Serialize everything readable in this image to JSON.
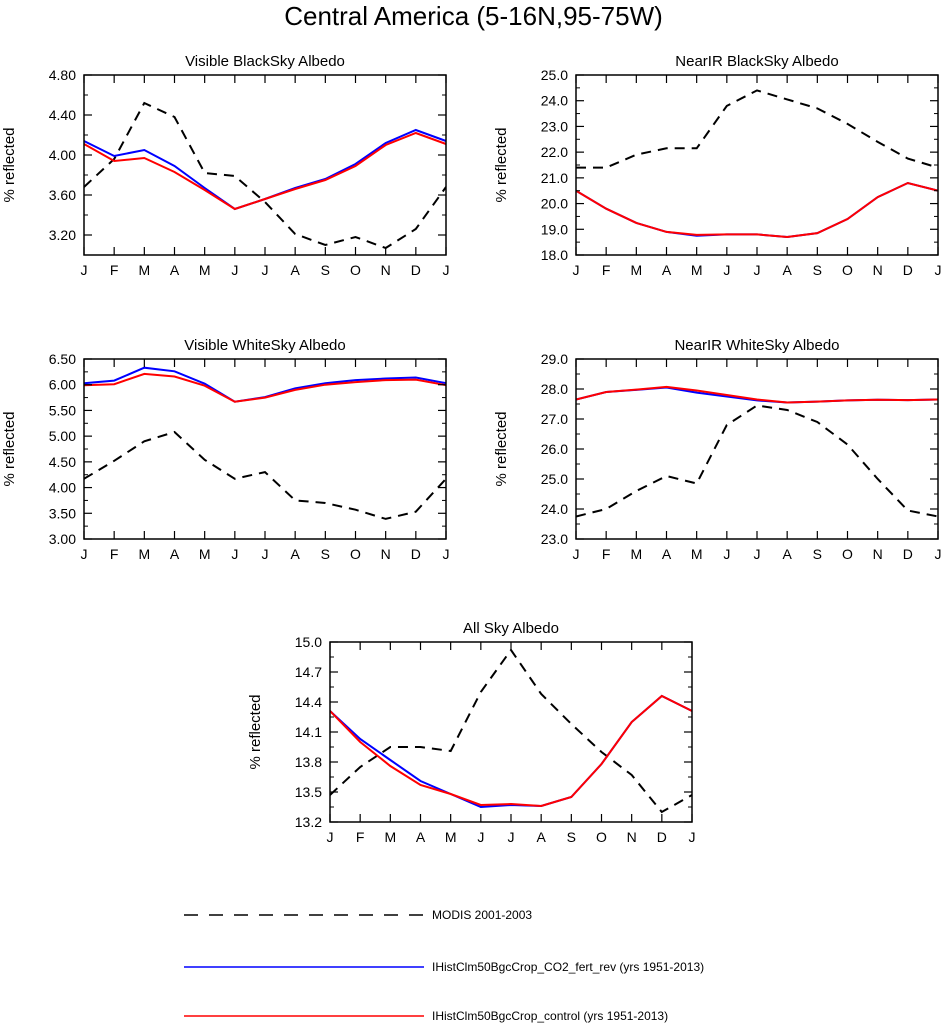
{
  "page": {
    "title": "Central America (5-16N,95-75W)"
  },
  "legend": {
    "items": [
      {
        "label": "MODIS 2001-2003",
        "color": "#000000",
        "dash": true
      },
      {
        "label": "IHistClm50BgcCrop_CO2_fert_rev (yrs 1951-2013)",
        "color": "#0000ff",
        "dash": false
      },
      {
        "label": "IHistClm50BgcCrop_control (yrs 1951-2013)",
        "color": "#ff0000",
        "dash": false
      }
    ]
  },
  "chart_data": [
    {
      "type": "line",
      "title": "Visible BlackSky Albedo",
      "xlabel": "",
      "ylabel": "% reflected",
      "categories": [
        "J",
        "F",
        "M",
        "A",
        "M",
        "J",
        "J",
        "A",
        "S",
        "O",
        "N",
        "D",
        "J"
      ],
      "ylim": [
        3.0,
        4.8
      ],
      "yticks": [
        3.2,
        3.6,
        4.0,
        4.4,
        4.8
      ],
      "ytick_labels": [
        "3.20",
        "3.60",
        "4.00",
        "4.40",
        "4.80"
      ],
      "grid": false,
      "series": [
        {
          "name": "MODIS 2001-2003",
          "color": "#000000",
          "dash": true,
          "values": [
            3.68,
            3.96,
            4.52,
            4.38,
            3.82,
            3.79,
            3.53,
            3.21,
            3.1,
            3.18,
            3.07,
            3.26,
            3.68
          ]
        },
        {
          "name": "IHistClm50BgcCrop_CO2_fert_rev (yrs 1951-2013)",
          "color": "#0000ff",
          "dash": false,
          "values": [
            4.14,
            3.99,
            4.05,
            3.89,
            3.67,
            3.46,
            3.56,
            3.67,
            3.76,
            3.91,
            4.12,
            4.25,
            4.14
          ]
        },
        {
          "name": "IHistClm50BgcCrop_control (yrs 1951-2013)",
          "color": "#ff0000",
          "dash": false,
          "values": [
            4.11,
            3.94,
            3.97,
            3.83,
            3.65,
            3.46,
            3.56,
            3.66,
            3.75,
            3.89,
            4.1,
            4.22,
            4.11
          ]
        }
      ]
    },
    {
      "type": "line",
      "title": "NearIR BlackSky Albedo",
      "xlabel": "",
      "ylabel": "% reflected",
      "categories": [
        "J",
        "F",
        "M",
        "A",
        "M",
        "J",
        "J",
        "A",
        "S",
        "O",
        "N",
        "D",
        "J"
      ],
      "ylim": [
        18.0,
        25.0
      ],
      "yticks": [
        18,
        19,
        20,
        21,
        22,
        23,
        24,
        25
      ],
      "ytick_labels": [
        "18.0",
        "19.0",
        "20.0",
        "21.0",
        "22.0",
        "23.0",
        "24.0",
        "25.0"
      ],
      "grid": false,
      "series": [
        {
          "name": "MODIS 2001-2003",
          "color": "#000000",
          "dash": true,
          "values": [
            21.4,
            21.4,
            21.9,
            22.15,
            22.15,
            23.8,
            24.4,
            24.05,
            23.7,
            23.1,
            22.4,
            21.75,
            21.4
          ]
        },
        {
          "name": "IHistClm50BgcCrop_CO2_fert_rev (yrs 1951-2013)",
          "color": "#0000ff",
          "dash": false,
          "values": [
            20.5,
            19.8,
            19.25,
            18.9,
            18.75,
            18.8,
            18.8,
            18.7,
            18.85,
            19.4,
            20.25,
            20.8,
            20.5
          ]
        },
        {
          "name": "IHistClm50BgcCrop_control (yrs 1951-2013)",
          "color": "#ff0000",
          "dash": false,
          "values": [
            20.5,
            19.8,
            19.25,
            18.9,
            18.78,
            18.8,
            18.8,
            18.7,
            18.85,
            19.4,
            20.25,
            20.8,
            20.5
          ]
        }
      ]
    },
    {
      "type": "line",
      "title": "Visible WhiteSky Albedo",
      "xlabel": "",
      "ylabel": "% reflected",
      "categories": [
        "J",
        "F",
        "M",
        "A",
        "M",
        "J",
        "J",
        "A",
        "S",
        "O",
        "N",
        "D",
        "J"
      ],
      "ylim": [
        3.0,
        6.5
      ],
      "yticks": [
        3.0,
        3.5,
        4.0,
        4.5,
        5.0,
        5.5,
        6.0,
        6.5
      ],
      "ytick_labels": [
        "3.00",
        "3.50",
        "4.00",
        "4.50",
        "5.00",
        "5.50",
        "6.00",
        "6.50"
      ],
      "grid": false,
      "series": [
        {
          "name": "MODIS 2001-2003",
          "color": "#000000",
          "dash": true,
          "values": [
            4.17,
            4.52,
            4.9,
            5.08,
            4.54,
            4.17,
            4.3,
            3.75,
            3.7,
            3.57,
            3.39,
            3.53,
            4.17
          ]
        },
        {
          "name": "IHistClm50BgcCrop_CO2_fert_rev (yrs 1951-2013)",
          "color": "#0000ff",
          "dash": false,
          "values": [
            6.03,
            6.08,
            6.33,
            6.26,
            6.02,
            5.67,
            5.76,
            5.93,
            6.03,
            6.09,
            6.12,
            6.14,
            6.03
          ]
        },
        {
          "name": "IHistClm50BgcCrop_control (yrs 1951-2013)",
          "color": "#ff0000",
          "dash": false,
          "values": [
            5.99,
            6.01,
            6.21,
            6.16,
            5.98,
            5.67,
            5.75,
            5.9,
            6.0,
            6.05,
            6.09,
            6.1,
            5.99
          ]
        }
      ]
    },
    {
      "type": "line",
      "title": "NearIR WhiteSky Albedo",
      "xlabel": "",
      "ylabel": "% reflected",
      "categories": [
        "J",
        "F",
        "M",
        "A",
        "M",
        "J",
        "J",
        "A",
        "S",
        "O",
        "N",
        "D",
        "J"
      ],
      "ylim": [
        23.0,
        29.0
      ],
      "yticks": [
        23,
        24,
        25,
        26,
        27,
        28,
        29
      ],
      "ytick_labels": [
        "23.0",
        "24.0",
        "25.0",
        "26.0",
        "27.0",
        "28.0",
        "29.0"
      ],
      "grid": false,
      "series": [
        {
          "name": "MODIS 2001-2003",
          "color": "#000000",
          "dash": true,
          "values": [
            23.75,
            24.0,
            24.6,
            25.1,
            24.85,
            26.8,
            27.45,
            27.3,
            26.9,
            26.15,
            25.0,
            23.95,
            23.75
          ]
        },
        {
          "name": "IHistClm50BgcCrop_CO2_fert_rev (yrs 1951-2013)",
          "color": "#0000ff",
          "dash": false,
          "values": [
            27.65,
            27.9,
            27.97,
            28.05,
            27.88,
            27.75,
            27.62,
            27.55,
            27.58,
            27.62,
            27.64,
            27.63,
            27.65
          ]
        },
        {
          "name": "IHistClm50BgcCrop_control (yrs 1951-2013)",
          "color": "#ff0000",
          "dash": false,
          "values": [
            27.65,
            27.9,
            27.98,
            28.07,
            27.95,
            27.8,
            27.65,
            27.55,
            27.58,
            27.62,
            27.64,
            27.63,
            27.65
          ]
        }
      ]
    },
    {
      "type": "line",
      "title": "All Sky Albedo",
      "xlabel": "",
      "ylabel": "% reflected",
      "categories": [
        "J",
        "F",
        "M",
        "A",
        "M",
        "J",
        "J",
        "A",
        "S",
        "O",
        "N",
        "D",
        "J"
      ],
      "ylim": [
        13.2,
        15.0
      ],
      "yticks": [
        13.2,
        13.5,
        13.8,
        14.1,
        14.4,
        14.7,
        15.0
      ],
      "ytick_labels": [
        "13.2",
        "13.5",
        "13.8",
        "14.1",
        "14.4",
        "14.7",
        "15.0"
      ],
      "grid": false,
      "series": [
        {
          "name": "MODIS 2001-2003",
          "color": "#000000",
          "dash": true,
          "values": [
            13.47,
            13.75,
            13.95,
            13.95,
            13.91,
            14.5,
            14.92,
            14.48,
            14.18,
            13.9,
            13.67,
            13.3,
            13.47
          ]
        },
        {
          "name": "IHistClm50BgcCrop_CO2_fert_rev (yrs 1951-2013)",
          "color": "#0000ff",
          "dash": false,
          "values": [
            14.31,
            14.03,
            13.82,
            13.61,
            13.48,
            13.35,
            13.37,
            13.36,
            13.45,
            13.78,
            14.2,
            14.46,
            14.31
          ]
        },
        {
          "name": "IHistClm50BgcCrop_control (yrs 1951-2013)",
          "color": "#ff0000",
          "dash": false,
          "values": [
            14.31,
            14.0,
            13.76,
            13.57,
            13.48,
            13.37,
            13.38,
            13.36,
            13.45,
            13.78,
            14.2,
            14.46,
            14.31
          ]
        }
      ]
    }
  ]
}
